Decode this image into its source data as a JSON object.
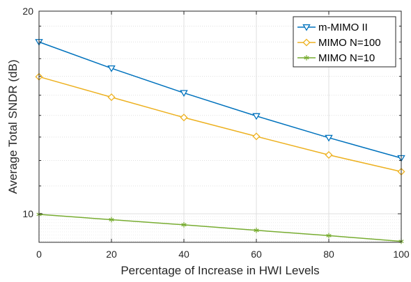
{
  "chart_data": {
    "type": "line",
    "title": "",
    "xlabel": "Percentage of Increase in HWI Levels",
    "ylabel": "Average Total SNDR (dB)",
    "x": [
      0,
      20,
      40,
      60,
      80,
      100
    ],
    "xticks": [
      "0",
      "20",
      "40",
      "60",
      "80",
      "100"
    ],
    "ytick_labels": [
      "20",
      "10"
    ],
    "ylim_db": [
      9.07,
      20
    ],
    "y_scale": "log",
    "grid": true,
    "legend_position": "top-right",
    "series": [
      {
        "name": "m-MIMO II",
        "marker": "triangle-down",
        "color": "#0072BD",
        "values": [
          18.0,
          16.45,
          15.12,
          13.97,
          12.97,
          12.1
        ]
      },
      {
        "name": "MIMO N=100",
        "marker": "diamond",
        "color": "#EDB120",
        "values": [
          15.98,
          14.9,
          13.9,
          13.03,
          12.23,
          11.55
        ]
      },
      {
        "name": "MIMO N=10",
        "marker": "asterisk",
        "color": "#77AC30",
        "values": [
          9.98,
          9.8,
          9.63,
          9.45,
          9.28,
          9.1
        ]
      }
    ]
  }
}
